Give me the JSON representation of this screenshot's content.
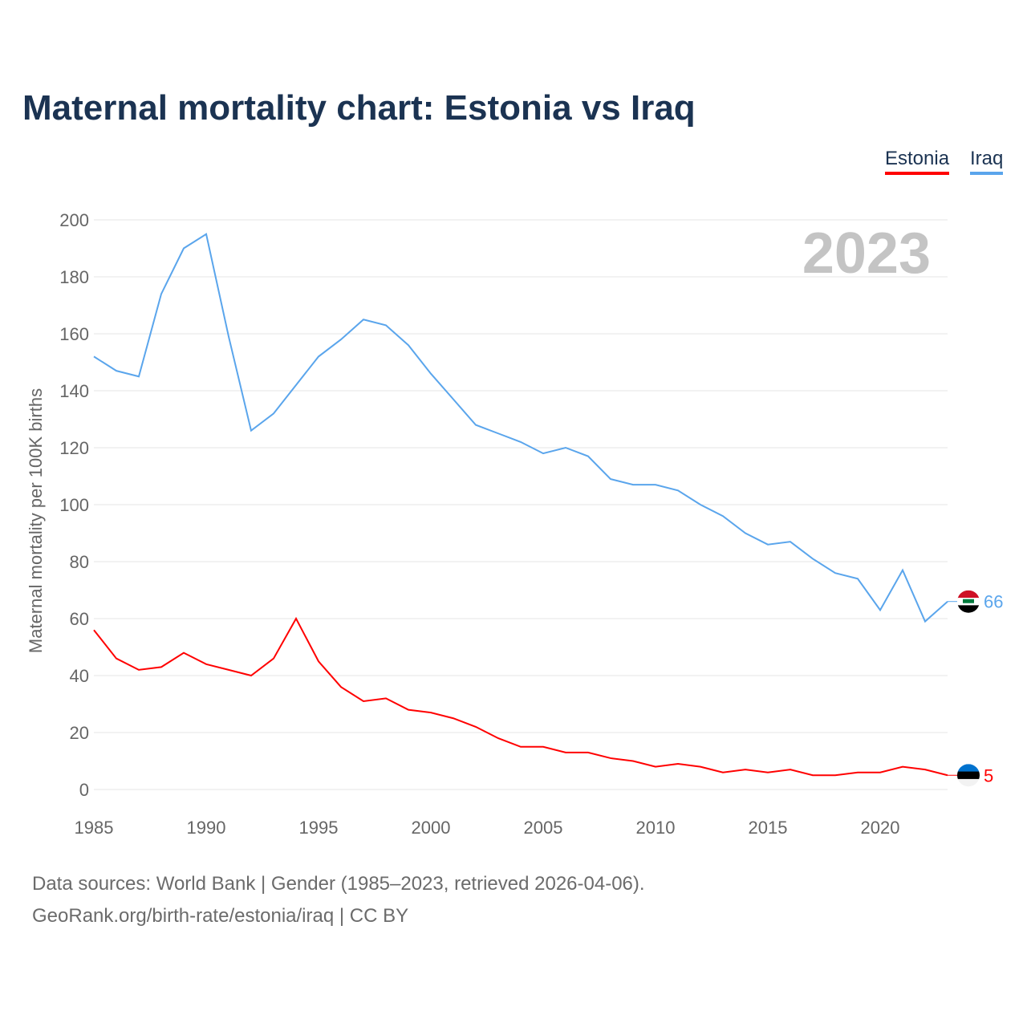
{
  "chart_data": {
    "type": "line",
    "title": "Maternal mortality chart: Estonia vs Iraq",
    "xlabel": "",
    "ylabel": "Maternal mortality per 100K births",
    "xlim": [
      1985,
      2023
    ],
    "ylim": [
      0,
      200
    ],
    "yticks": [
      0,
      20,
      40,
      60,
      80,
      100,
      120,
      140,
      160,
      180,
      200
    ],
    "xticks": [
      1985,
      1990,
      1995,
      2000,
      2005,
      2010,
      2015,
      2020
    ],
    "grid": true,
    "legend_position": "top-right",
    "year_label": "2023",
    "x": [
      1985,
      1986,
      1987,
      1988,
      1989,
      1990,
      1991,
      1992,
      1993,
      1994,
      1995,
      1996,
      1997,
      1998,
      1999,
      2000,
      2001,
      2002,
      2003,
      2004,
      2005,
      2006,
      2007,
      2008,
      2009,
      2010,
      2011,
      2012,
      2013,
      2014,
      2015,
      2016,
      2017,
      2018,
      2019,
      2020,
      2021,
      2022,
      2023
    ],
    "series": [
      {
        "name": "Estonia",
        "color": "#ff0000",
        "end_label": "5",
        "values": [
          56,
          46,
          42,
          43,
          48,
          44,
          42,
          40,
          46,
          60,
          45,
          36,
          31,
          32,
          28,
          27,
          25,
          22,
          18,
          15,
          15,
          13,
          13,
          11,
          10,
          8,
          9,
          8,
          6,
          7,
          6,
          7,
          5,
          5,
          6,
          6,
          8,
          7,
          5
        ]
      },
      {
        "name": "Iraq",
        "color": "#5aa5ec",
        "end_label": "66",
        "values": [
          152,
          147,
          145,
          174,
          190,
          195,
          159,
          126,
          132,
          142,
          152,
          158,
          165,
          163,
          156,
          146,
          137,
          128,
          125,
          122,
          118,
          120,
          117,
          109,
          107,
          107,
          105,
          100,
          96,
          90,
          86,
          87,
          81,
          76,
          74,
          63,
          77,
          59,
          66
        ]
      }
    ]
  },
  "footer": {
    "line1": "Data sources: World Bank | Gender (1985–2023, retrieved 2026-04-06).",
    "line2": "GeoRank.org/birth-rate/estonia/iraq | CC BY"
  }
}
